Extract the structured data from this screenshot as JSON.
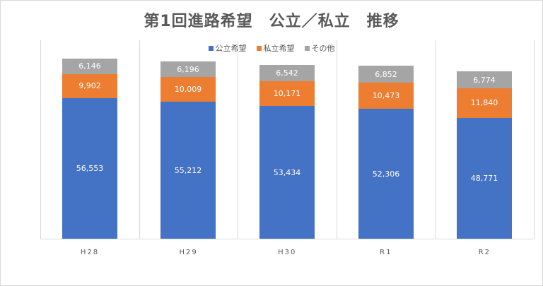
{
  "chart_data": {
    "type": "bar",
    "stacked": true,
    "title": "第1回進路希望　公立／私立　推移",
    "categories": [
      "H28",
      "H29",
      "H30",
      "R1",
      "R2"
    ],
    "series": [
      {
        "name": "公立希望",
        "color": "#4472c4",
        "values": [
          56553,
          55212,
          53434,
          52306,
          48771
        ]
      },
      {
        "name": "私立希望",
        "color": "#ed7d31",
        "values": [
          9902,
          10009,
          10171,
          10473,
          11840
        ]
      },
      {
        "name": "その他",
        "color": "#a5a5a5",
        "values": [
          6146,
          6196,
          6542,
          6852,
          6774
        ]
      }
    ],
    "labels": {
      "公立希望": [
        "56,553",
        "55,212",
        "53,434",
        "52,306",
        "48,771"
      ],
      "私立希望": [
        "9,902",
        "10,009",
        "10,171",
        "10,473",
        "11,840"
      ],
      "その他": [
        "6,146",
        "6,196",
        "6,542",
        "6,852",
        "6,774"
      ]
    },
    "xlabel": "",
    "ylabel": "",
    "ylim": [
      0,
      80000
    ],
    "grid": "vertical category separators",
    "legend_position": "top"
  }
}
